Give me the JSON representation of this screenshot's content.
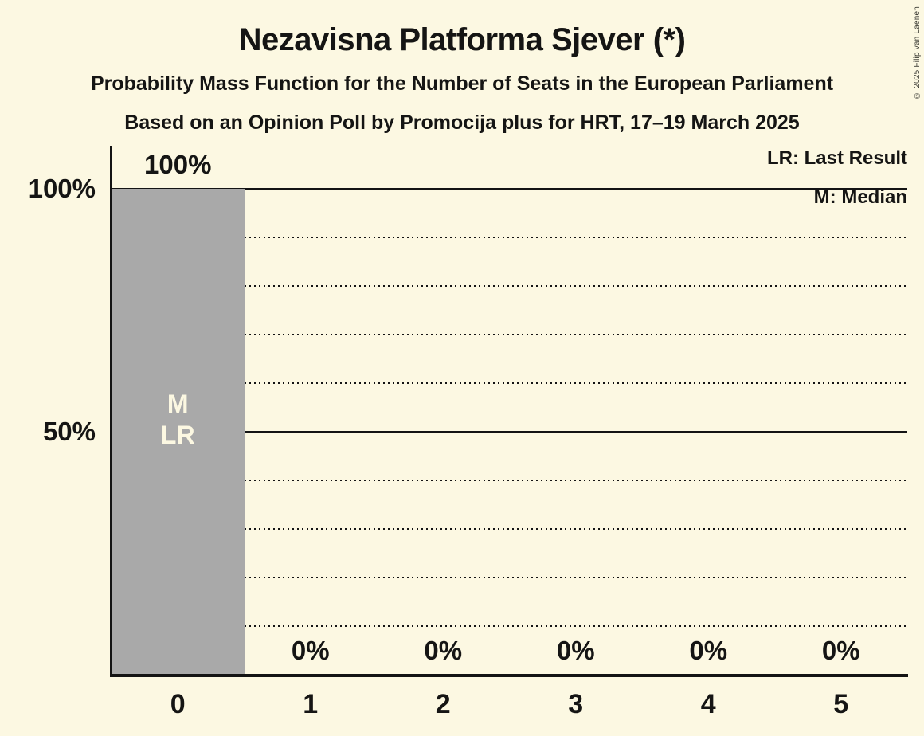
{
  "title": "Nezavisna Platforma Sjever (*)",
  "subtitle1": "Probability Mass Function for the Number of Seats in the European Parliament",
  "subtitle2": "Based on an Opinion Poll by Promocija plus for HRT, 17–19 March 2025",
  "copyright": "© 2025 Filip van Laenen",
  "legend": {
    "lr_label": "LR: Last Result",
    "m_label": "M: Median",
    "position": "top-right"
  },
  "colors": {
    "background": "#FCF8E2",
    "bar": "#A9A9A9",
    "text": "#151514",
    "line": "#141414",
    "bar_inner_label": "#FCF8E2"
  },
  "chart_data": {
    "type": "bar",
    "title": "Nezavisna Platforma Sjever (*)",
    "subtitle": "Probability Mass Function for the Number of Seats in the European Parliament",
    "source_line": "Based on an Opinion Poll by Promocija plus for HRT, 17–19 March 2025",
    "categories": [
      "0",
      "1",
      "2",
      "3",
      "4",
      "5"
    ],
    "values": [
      100,
      0,
      0,
      0,
      0,
      0
    ],
    "bar_value_labels": [
      "100%",
      "0%",
      "0%",
      "0%",
      "0%",
      "0%"
    ],
    "bar_annotations": [
      [
        "M",
        "LR"
      ],
      [],
      [],
      [],
      [],
      []
    ],
    "median_seats": 0,
    "last_result_seats": 0,
    "xlabel": "",
    "ylabel": "",
    "ylim": [
      0,
      100
    ],
    "ytick_values": [
      100,
      50
    ],
    "ytick_labels": [
      "100%",
      "50%"
    ],
    "solid_gridlines_pct": [
      100,
      50
    ],
    "dotted_gridlines_pct": [
      90,
      80,
      70,
      60,
      40,
      30,
      20,
      10
    ],
    "grid": "horizontal",
    "legend_entries": [
      "LR: Last Result",
      "M: Median"
    ],
    "legend_position": "top-right"
  }
}
